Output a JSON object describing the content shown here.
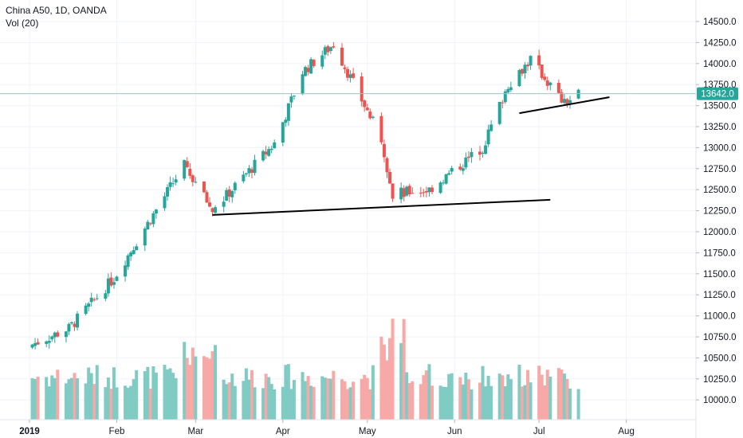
{
  "header": {
    "symbol_line": "China A50, 1D, OANDA",
    "volume_line": "Vol (20)"
  },
  "colors": {
    "up": "#26a69a",
    "down": "#ef5350",
    "vol_up": "#80cbc4",
    "vol_down": "#f7a9a7",
    "last_price_line": "#7fd4c9",
    "last_price_tag": "#26a69a",
    "grid": "#f0f3fa",
    "trendline": "#000000",
    "axis_text": "#131722"
  },
  "chart_data": {
    "type": "candlestick",
    "x_tick_labels": [
      "2019",
      "Feb",
      "Mar",
      "Apr",
      "May",
      "Jun",
      "Jul",
      "Aug"
    ],
    "y_tick_labels": [
      "10000.0",
      "10250.0",
      "10500.0",
      "10750.0",
      "11000.0",
      "11250.0",
      "11500.0",
      "11750.0",
      "12000.0",
      "12250.0",
      "12500.0",
      "12750.0",
      "13000.0",
      "13250.0",
      "13500.0",
      "13750.0",
      "14000.0",
      "14250.0",
      "14500.0"
    ],
    "y_range": [
      9850,
      14620
    ],
    "last_price": "13642.0",
    "grid": true,
    "volume_indicator": "Vol (20)",
    "trendlines": [
      {
        "from": [
          "2019-03-07",
          12200
        ],
        "to": [
          "2019-07-05",
          12380
        ]
      },
      {
        "from": [
          "2019-06-24",
          13410
        ],
        "to": [
          "2019-07-26",
          13600
        ]
      }
    ],
    "key_points": [
      {
        "date": "2019-01-02",
        "close": 10660
      },
      {
        "date": "2019-01-15",
        "close": 10850
      },
      {
        "date": "2019-01-31",
        "close": 11450
      },
      {
        "date": "2019-02-25",
        "close": 12800
      },
      {
        "date": "2019-03-07",
        "close": 12250
      },
      {
        "date": "2019-03-29",
        "close": 13050
      },
      {
        "date": "2019-04-08",
        "close": 13900
      },
      {
        "date": "2019-04-19",
        "close": 14230
      },
      {
        "date": "2019-05-06",
        "close": 13100
      },
      {
        "date": "2019-05-10",
        "close": 12450
      },
      {
        "date": "2019-05-23",
        "close": 12500
      },
      {
        "date": "2019-06-11",
        "close": 13000
      },
      {
        "date": "2019-06-20",
        "close": 13750
      },
      {
        "date": "2019-06-28",
        "close": 14050
      },
      {
        "date": "2019-07-10",
        "close": 13520
      },
      {
        "date": "2019-07-15",
        "close": 13642
      }
    ]
  }
}
